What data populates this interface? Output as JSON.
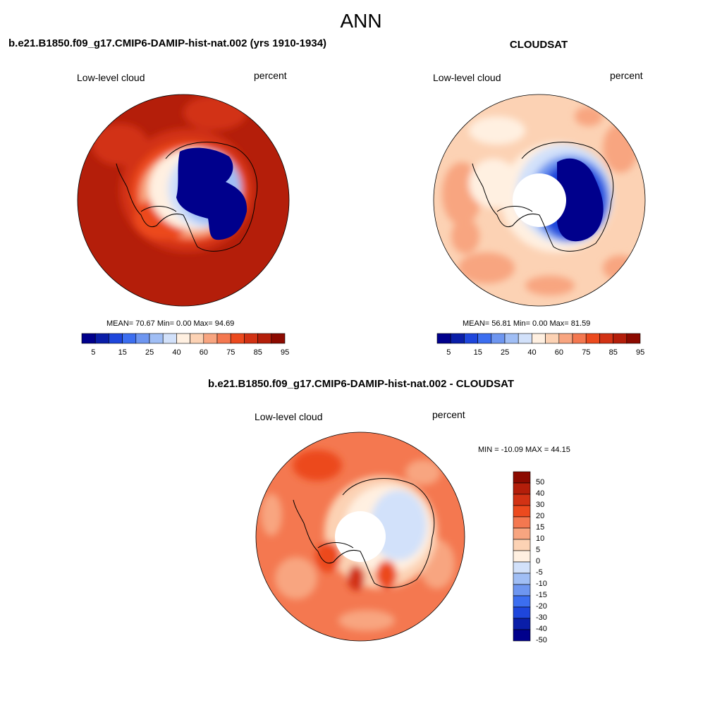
{
  "title": "ANN",
  "panels": [
    {
      "title": "b.e21.B1850.f09_g17.CMIP6-DAMIP-hist-nat.002 (yrs 1910-1934)",
      "left_label": "Low-level cloud",
      "right_label": "percent",
      "stats": "MEAN=  70.67  Min=   0.00  Max=  94.69",
      "colorbar_ticks": [
        "5",
        "15",
        "25",
        "40",
        "60",
        "75",
        "85",
        "95"
      ]
    },
    {
      "title": "CLOUDSAT",
      "left_label": "Low-level cloud",
      "right_label": "percent",
      "stats": "MEAN=  56.81  Min=   0.00  Max=  81.59",
      "colorbar_ticks": [
        "5",
        "15",
        "25",
        "40",
        "60",
        "75",
        "85",
        "95"
      ]
    },
    {
      "title": "b.e21.B1850.f09_g17.CMIP6-DAMIP-hist-nat.002 - CLOUDSAT",
      "left_label": "Low-level cloud",
      "right_label": "percent",
      "stats": "MIN = -10.09 MAX =  44.15",
      "colorbar_ticks": [
        "50",
        "40",
        "30",
        "20",
        "15",
        "10",
        "5",
        "0",
        "-5",
        "-10",
        "-15",
        "-20",
        "-30",
        "-40",
        "-50"
      ]
    }
  ],
  "colors": {
    "abs_scale": [
      "#00008c",
      "#0a1ea8",
      "#1e46dc",
      "#3c6ef0",
      "#6e96f0",
      "#a0bef5",
      "#d2e1fa",
      "#fff0e1",
      "#fcd2b4",
      "#f8a580",
      "#f47850",
      "#ec4a1e",
      "#d23214",
      "#b41e0a",
      "#8c0a00"
    ],
    "diff_scale": [
      "#8c0a00",
      "#b41e0a",
      "#d23214",
      "#ec4a1e",
      "#f47850",
      "#f8a580",
      "#fcd2b4",
      "#fff0e1",
      "#d2e1fa",
      "#a0bef5",
      "#6e96f0",
      "#3c6ef0",
      "#1e46dc",
      "#0a1ea8",
      "#00008c"
    ],
    "outline": "#000000"
  }
}
